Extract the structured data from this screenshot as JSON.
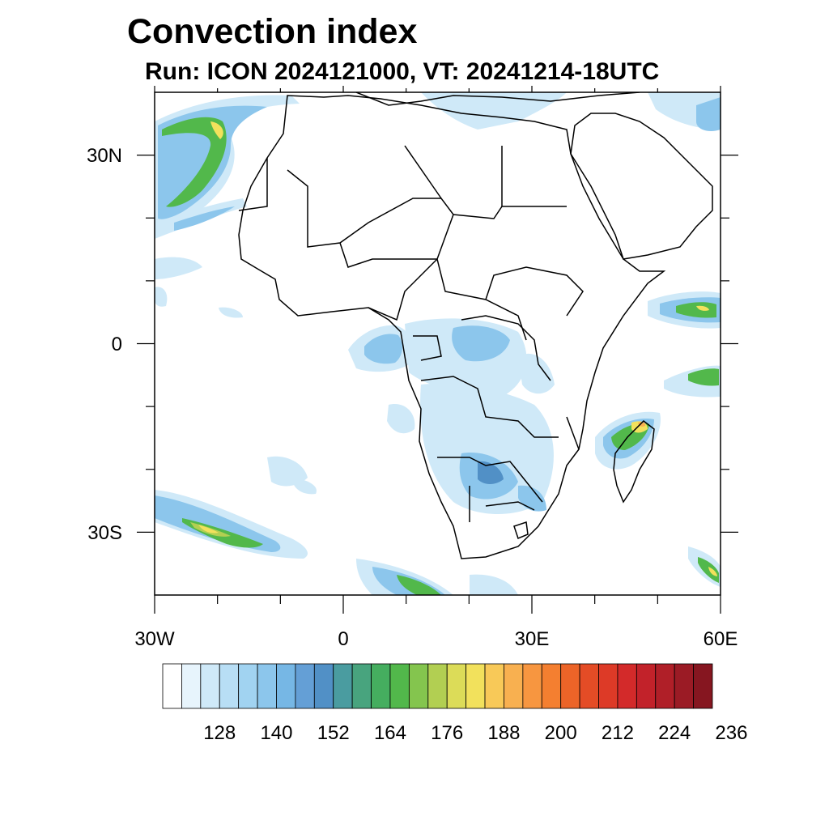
{
  "title": "Convection index",
  "subtitle": "Run: ICON 2024121000,  VT: 20241214-18UTC",
  "chart_data": {
    "type": "heatmap",
    "x_axis": {
      "range": [
        -30,
        60
      ],
      "major_ticks": [
        -30,
        0,
        30,
        60
      ],
      "minor_ticks": [
        -20,
        -10,
        10,
        20,
        40,
        50
      ],
      "tick_labels": [
        "30W",
        "0",
        "30E",
        "60E"
      ]
    },
    "y_axis": {
      "range": [
        -40,
        40
      ],
      "major_ticks": [
        30,
        0,
        -30
      ],
      "minor_ticks": [
        20,
        10,
        -10,
        -20
      ],
      "tick_labels": [
        "30N",
        "0",
        "30S"
      ]
    },
    "colorbar": {
      "levels_start": 120,
      "level_step": 4,
      "colors": [
        "#ffffff",
        "#e7f4fc",
        "#cfe9f8",
        "#b8def5",
        "#a1d3f1",
        "#8cc6ec",
        "#76b7e5",
        "#649fd6",
        "#5190c6",
        "#4a9ca0",
        "#48a47e",
        "#45ae5f",
        "#52b84b",
        "#84c54e",
        "#b2cf52",
        "#dcdc58",
        "#f2e15c",
        "#f8c958",
        "#f8b050",
        "#f79640",
        "#f47f30",
        "#ec6428",
        "#e44c26",
        "#dd3a27",
        "#d32a2a",
        "#c2222a",
        "#b01f28",
        "#9b1b25",
        "#861620"
      ],
      "labels": [
        {
          "value": 128,
          "text": "128"
        },
        {
          "value": 140,
          "text": "140"
        },
        {
          "value": 152,
          "text": "152"
        },
        {
          "value": 164,
          "text": "164"
        },
        {
          "value": 176,
          "text": "176"
        },
        {
          "value": 188,
          "text": "188"
        },
        {
          "value": 200,
          "text": "200"
        },
        {
          "value": 212,
          "text": "212"
        },
        {
          "value": 224,
          "text": "224"
        },
        {
          "value": 236,
          "text": "236"
        }
      ]
    },
    "field_colors": {
      "light": "#cfe9f8",
      "medium": "#8cc6ec",
      "dark": "#5190c6",
      "teal": "#48a47e",
      "green": "#52b84b",
      "lime": "#b2cf52",
      "yellow": "#f2e15c",
      "orange": "#f8b050"
    },
    "coast_color": "#000000"
  }
}
